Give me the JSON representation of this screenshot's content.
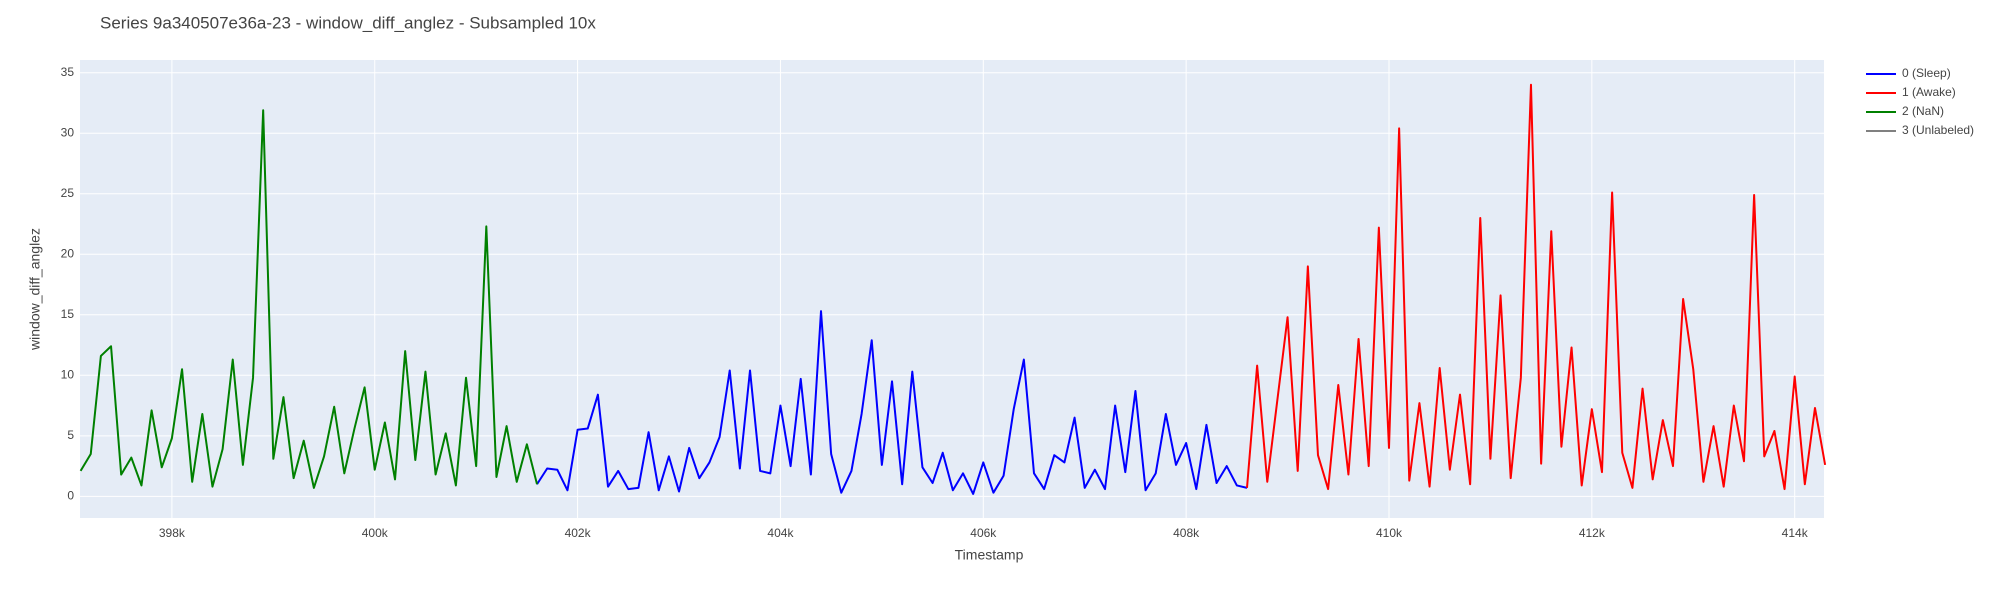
{
  "chart_data": {
    "type": "line",
    "title": "Series 9a340507e36a-23 - window_diff_anglez - Subsampled 10x",
    "x_label": "Timestamp",
    "y_label": "window_diff_anglez",
    "xlim": [
      397094,
      414289
    ],
    "ylim": [
      -1.79,
      36.05
    ],
    "xticks": [
      {
        "value": 398000,
        "label": "398k"
      },
      {
        "value": 400000,
        "label": "400k"
      },
      {
        "value": 402000,
        "label": "402k"
      },
      {
        "value": 404000,
        "label": "404k"
      },
      {
        "value": 406000,
        "label": "406k"
      },
      {
        "value": 408000,
        "label": "408k"
      },
      {
        "value": 410000,
        "label": "410k"
      },
      {
        "value": 412000,
        "label": "412k"
      },
      {
        "value": 414000,
        "label": "414k"
      }
    ],
    "yticks": [
      0,
      5,
      10,
      15,
      20,
      25,
      30,
      35
    ],
    "grid": true,
    "legend": "right",
    "series": [
      {
        "name": "0 (Sleep)",
        "color": "#0000ff",
        "x": [
          401600,
          401700,
          401800,
          401900,
          402000,
          402100,
          402200,
          402300,
          402400,
          402500,
          402600,
          402700,
          402800,
          402900,
          403000,
          403100,
          403200,
          403300,
          403400,
          403500,
          403600,
          403700,
          403800,
          403900,
          404000,
          404100,
          404200,
          404300,
          404400,
          404500,
          404600,
          404700,
          404800,
          404900,
          405000,
          405100,
          405200,
          405300,
          405400,
          405500,
          405600,
          405700,
          405800,
          405900,
          406000,
          406100,
          406200,
          406300,
          406400,
          406500,
          406600,
          406700,
          406800,
          406900,
          407000,
          407100,
          407200,
          407300,
          407400,
          407500,
          407600,
          407700,
          407800,
          407900,
          408000,
          408100,
          408200,
          408300,
          408400,
          408500,
          408600
        ],
        "values": [
          1.0,
          2.3,
          2.2,
          0.5,
          5.5,
          5.6,
          8.4,
          0.8,
          2.1,
          0.6,
          0.7,
          5.3,
          0.5,
          3.3,
          0.4,
          4.0,
          1.5,
          2.8,
          4.9,
          10.4,
          2.3,
          10.4,
          2.1,
          1.9,
          7.5,
          2.5,
          9.7,
          1.8,
          15.3,
          3.5,
          0.3,
          2.1,
          6.8,
          12.9,
          2.6,
          9.5,
          1.0,
          10.3,
          2.4,
          1.1,
          3.6,
          0.5,
          1.9,
          0.2,
          2.8,
          0.3,
          1.7,
          7.2,
          11.3,
          1.9,
          0.6,
          3.4,
          2.8,
          6.5,
          0.7,
          2.2,
          0.6,
          7.5,
          2.0,
          8.7,
          0.5,
          1.9,
          6.8,
          2.6,
          4.4,
          0.6,
          5.9,
          1.1,
          2.5,
          0.9,
          0.7
        ]
      },
      {
        "name": "1 (Awake)",
        "color": "#ff0000",
        "x": [
          408600,
          408700,
          408800,
          408900,
          409000,
          409100,
          409200,
          409300,
          409400,
          409500,
          409600,
          409700,
          409800,
          409900,
          410000,
          410100,
          410200,
          410300,
          410400,
          410500,
          410600,
          410700,
          410800,
          410900,
          411000,
          411100,
          411200,
          411300,
          411400,
          411500,
          411600,
          411700,
          411800,
          411900,
          412000,
          412100,
          412200,
          412300,
          412400,
          412500,
          412600,
          412700,
          412800,
          412900,
          413000,
          413100,
          413200,
          413300,
          413400,
          413500,
          413600,
          413700,
          413800,
          413900,
          414000,
          414100,
          414200,
          414300
        ],
        "values": [
          0.7,
          10.8,
          1.2,
          8.0,
          14.8,
          2.1,
          19.0,
          3.4,
          0.6,
          9.2,
          1.8,
          13.0,
          2.5,
          22.2,
          4.0,
          30.4,
          1.3,
          7.7,
          0.8,
          10.6,
          2.2,
          8.4,
          1.0,
          23.0,
          3.1,
          16.6,
          1.5,
          9.8,
          34.0,
          2.7,
          21.9,
          4.1,
          12.3,
          0.9,
          7.2,
          2.0,
          25.1,
          3.6,
          0.7,
          8.9,
          1.4,
          6.3,
          2.5,
          16.3,
          10.5,
          1.2,
          5.8,
          0.8,
          7.5,
          2.9,
          24.9,
          3.3,
          5.4,
          0.6,
          9.9,
          1.0,
          7.3,
          2.6
        ]
      },
      {
        "name": "2 (NaN)",
        "color": "#008000",
        "x": [
          397100,
          397200,
          397300,
          397400,
          397500,
          397600,
          397700,
          397800,
          397900,
          398000,
          398100,
          398200,
          398300,
          398400,
          398500,
          398600,
          398700,
          398800,
          398900,
          399000,
          399100,
          399200,
          399300,
          399400,
          399500,
          399600,
          399700,
          399800,
          399900,
          400000,
          400100,
          400200,
          400300,
          400400,
          400500,
          400600,
          400700,
          400800,
          400900,
          401000,
          401100,
          401200,
          401300,
          401400,
          401500,
          401600
        ],
        "values": [
          2.1,
          3.5,
          11.6,
          12.4,
          1.8,
          3.2,
          0.9,
          7.1,
          2.4,
          4.8,
          10.5,
          1.2,
          6.8,
          0.8,
          3.9,
          11.3,
          2.6,
          9.8,
          31.9,
          3.1,
          8.2,
          1.5,
          4.6,
          0.7,
          3.3,
          7.4,
          1.9,
          5.6,
          9.0,
          2.2,
          6.1,
          1.4,
          12.0,
          3.0,
          10.3,
          1.8,
          5.2,
          0.9,
          9.8,
          2.5,
          22.3,
          1.6,
          5.8,
          1.2,
          4.3,
          1.0
        ]
      },
      {
        "name": "3 (Unlabeled)",
        "color": "#808080",
        "x": [],
        "values": []
      }
    ]
  }
}
